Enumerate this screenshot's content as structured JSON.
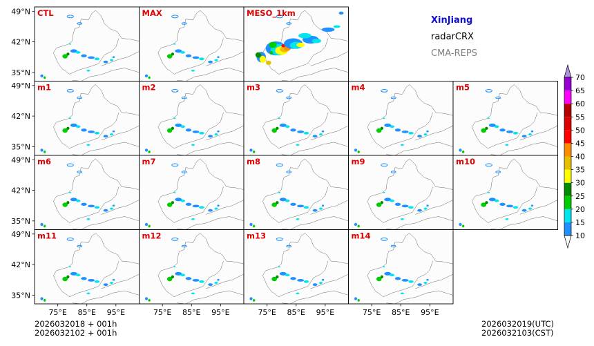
{
  "chart_data": {
    "type": "heatmap",
    "title": "XinJiang radarCRX CMA-REPS",
    "region": "XinJiang",
    "variable": "radarCRX",
    "model": "CMA-REPS",
    "xlabel": "",
    "ylabel": "",
    "xlim": [
      67,
      103
    ],
    "ylim": [
      33,
      50
    ],
    "xticks": [
      75,
      85,
      95
    ],
    "xtick_labels": [
      "75°E",
      "85°E",
      "95°E"
    ],
    "yticks": [
      35,
      42,
      49
    ],
    "ytick_labels": [
      "35°N",
      "42°N",
      "49°N"
    ],
    "panels": [
      "CTL",
      "MAX",
      "MESO_1km",
      "m1",
      "m2",
      "m3",
      "m4",
      "m5",
      "m6",
      "m7",
      "m8",
      "m9",
      "m10",
      "m11",
      "m12",
      "m13",
      "m14"
    ],
    "colorbar": {
      "levels": [
        10,
        15,
        20,
        25,
        30,
        35,
        40,
        45,
        50,
        55,
        60,
        65,
        70
      ],
      "tick_labels": [
        "10",
        "15",
        "20",
        "25",
        "30",
        "35",
        "40",
        "45",
        "50",
        "55",
        "60",
        "65",
        "70"
      ],
      "colors": [
        "#1e90ff",
        "#00e5ee",
        "#00cd00",
        "#008b00",
        "#ffff00",
        "#e6c000",
        "#ff8c00",
        "#ff0000",
        "#dc0000",
        "#b40000",
        "#ff00ff",
        "#9400d3"
      ],
      "over_color": "#ad90e0",
      "under_color": "#ffffff"
    },
    "init_time_utc": "2026032018  +  001h",
    "init_time_cst": "2026032102  +  001h",
    "valid_time_utc": "2026032019(UTC)",
    "valid_time_cst": "2026032103(CST)"
  }
}
